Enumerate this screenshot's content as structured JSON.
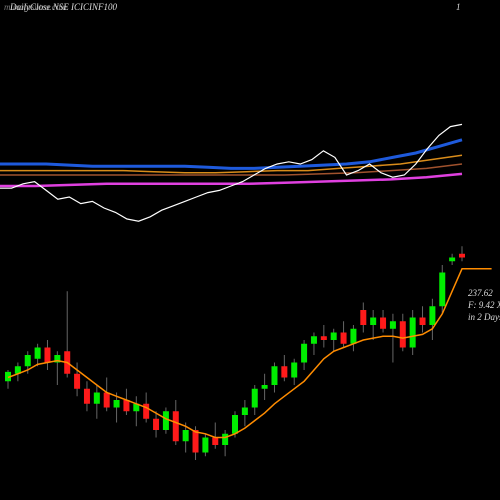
{
  "chart_data": [
    {
      "type": "line",
      "title": "DailyClose NSE ICICINF100",
      "watermark": "munafasutra.com",
      "corner_label": "1",
      "ylim": [
        0,
        100
      ],
      "series": [
        {
          "color": "#1e5adc",
          "width": 3,
          "values": [
            30,
            30,
            30,
            29.5,
            29,
            29,
            29,
            29,
            29,
            28.5,
            28,
            28,
            28.5,
            29,
            29.5,
            30,
            31,
            33,
            35,
            38,
            41
          ]
        },
        {
          "color": "#a0522d",
          "width": 1.5,
          "values": [
            25,
            25,
            25,
            25,
            25,
            25,
            25,
            25,
            25,
            25.5,
            26,
            27,
            28,
            30
          ]
        },
        {
          "color": "#d98c1a",
          "width": 1.5,
          "values": [
            27,
            27,
            27,
            27,
            27,
            26.5,
            26,
            26,
            26.5,
            27,
            27,
            28,
            29,
            30,
            32,
            34
          ]
        },
        {
          "color": "#e040e0",
          "width": 2.5,
          "values": [
            20,
            20,
            20.5,
            21,
            21,
            21,
            21,
            21,
            21.5,
            22,
            22.5,
            23,
            24,
            25.5
          ]
        },
        {
          "color": "#ffffff",
          "width": 1.2,
          "values": [
            19,
            19,
            21,
            22,
            18,
            14,
            15,
            12,
            13,
            10,
            8,
            5,
            4,
            6,
            9,
            11,
            13,
            15,
            17,
            18,
            20,
            22,
            25,
            28,
            30,
            31,
            30,
            32,
            36,
            33,
            25,
            27,
            30,
            26,
            24,
            25,
            30,
            37,
            43,
            47,
            48
          ]
        }
      ]
    },
    {
      "type": "candlestick",
      "ylim": [
        190,
        250
      ],
      "up_color": "#00ee00",
      "down_color": "#ff1a1a",
      "annotations": [
        "237.62",
        "F: 9.42 X",
        "in 2 Days"
      ],
      "candles": [
        [
          211,
          214,
          209,
          213.5
        ],
        [
          213,
          216,
          211,
          215
        ],
        [
          215,
          219,
          213,
          218
        ],
        [
          217,
          221,
          215,
          220
        ],
        [
          220,
          222,
          214,
          216
        ],
        [
          216,
          219,
          210,
          218
        ],
        [
          219,
          235,
          212,
          213
        ],
        [
          213,
          216,
          207,
          209
        ],
        [
          209,
          211,
          203,
          205
        ],
        [
          205,
          210,
          201,
          208
        ],
        [
          208,
          212,
          203,
          204
        ],
        [
          204,
          208,
          200,
          206
        ],
        [
          206,
          209,
          202,
          203
        ],
        [
          203,
          207,
          199,
          205
        ],
        [
          205,
          208,
          200,
          201
        ],
        [
          201,
          203,
          196,
          198
        ],
        [
          198,
          204,
          197,
          203
        ],
        [
          203,
          206,
          194,
          195
        ],
        [
          195,
          200,
          192,
          198
        ],
        [
          198,
          199,
          190,
          192
        ],
        [
          192,
          197,
          191,
          196
        ],
        [
          196,
          200,
          193,
          194
        ],
        [
          194,
          198,
          191,
          197
        ],
        [
          197,
          203,
          196,
          202
        ],
        [
          202,
          206,
          199,
          204
        ],
        [
          204,
          210,
          202,
          209
        ],
        [
          209,
          213,
          206,
          210
        ],
        [
          210,
          216,
          208,
          215
        ],
        [
          215,
          218,
          211,
          212
        ],
        [
          212,
          217,
          210,
          216
        ],
        [
          216,
          222,
          214,
          221
        ],
        [
          221,
          224,
          218,
          223
        ],
        [
          223,
          226,
          220,
          222
        ],
        [
          222,
          225,
          219,
          224
        ],
        [
          224,
          227,
          220,
          221
        ],
        [
          221,
          226,
          219,
          225
        ],
        [
          230,
          232,
          224,
          226
        ],
        [
          226,
          230,
          222,
          228
        ],
        [
          228,
          230,
          224,
          225
        ],
        [
          225,
          229,
          216,
          227
        ],
        [
          227,
          229,
          219,
          220
        ],
        [
          220,
          230,
          218,
          228
        ],
        [
          228,
          231,
          224,
          226
        ],
        [
          226,
          233,
          222,
          231
        ],
        [
          231,
          242,
          229,
          240
        ],
        [
          243,
          245,
          242,
          244
        ],
        [
          245,
          247,
          243,
          244
        ]
      ],
      "ma": {
        "color": "#ff8c00",
        "values": [
          212,
          213,
          214,
          215.5,
          216,
          216.5,
          216,
          214,
          212,
          210,
          208,
          207,
          206,
          205,
          204,
          202.5,
          201,
          200,
          199,
          197.5,
          197,
          196,
          196,
          197,
          198.5,
          200.5,
          202.5,
          205,
          207,
          209,
          211,
          214,
          217,
          219,
          220,
          221,
          222,
          222.5,
          223,
          223,
          222.5,
          223,
          223.5,
          225,
          229,
          235,
          241,
          241,
          241,
          241
        ]
      }
    }
  ]
}
